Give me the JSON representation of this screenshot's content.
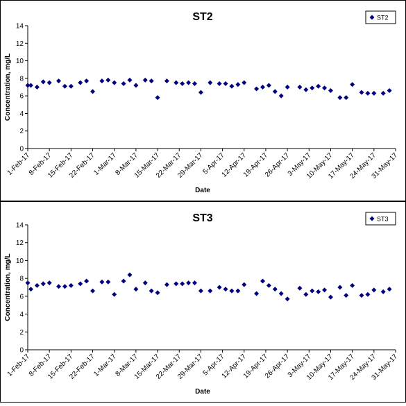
{
  "chart_data": [
    {
      "type": "scatter",
      "title": "ST2",
      "xlabel": "Date",
      "ylabel": "Concentration, mg/L",
      "ylim": [
        0,
        14
      ],
      "yticks": [
        0,
        2,
        4,
        6,
        8,
        10,
        12,
        14
      ],
      "xlim": [
        "2017-02-01",
        "2017-05-31"
      ],
      "xtick_labels": [
        "1-Feb-17",
        "8-Feb-17",
        "15-Feb-17",
        "22-Feb-17",
        "1-Mar-17",
        "8-Mar-17",
        "15-Mar-17",
        "22-Mar-17",
        "29-Mar-17",
        "5-Apr-17",
        "12-Apr-17",
        "19-Apr-17",
        "26-Apr-17",
        "3-May-17",
        "10-May-17",
        "17-May-17",
        "24-May-17",
        "31-May-17"
      ],
      "grid": false,
      "legend": "top-right",
      "marker_color": "#000080",
      "series": [
        {
          "name": "ST2",
          "points": [
            {
              "x": "2017-02-01",
              "y": 7.2
            },
            {
              "x": "2017-02-02",
              "y": 7.2
            },
            {
              "x": "2017-02-04",
              "y": 7.0
            },
            {
              "x": "2017-02-06",
              "y": 7.6
            },
            {
              "x": "2017-02-08",
              "y": 7.5
            },
            {
              "x": "2017-02-11",
              "y": 7.7
            },
            {
              "x": "2017-02-13",
              "y": 7.1
            },
            {
              "x": "2017-02-15",
              "y": 7.1
            },
            {
              "x": "2017-02-18",
              "y": 7.5
            },
            {
              "x": "2017-02-20",
              "y": 7.7
            },
            {
              "x": "2017-02-22",
              "y": 6.5
            },
            {
              "x": "2017-02-25",
              "y": 7.7
            },
            {
              "x": "2017-02-27",
              "y": 7.8
            },
            {
              "x": "2017-03-01",
              "y": 7.5
            },
            {
              "x": "2017-03-04",
              "y": 7.4
            },
            {
              "x": "2017-03-06",
              "y": 7.8
            },
            {
              "x": "2017-03-08",
              "y": 7.2
            },
            {
              "x": "2017-03-11",
              "y": 7.8
            },
            {
              "x": "2017-03-13",
              "y": 7.7
            },
            {
              "x": "2017-03-15",
              "y": 5.8
            },
            {
              "x": "2017-03-18",
              "y": 7.7
            },
            {
              "x": "2017-03-21",
              "y": 7.5
            },
            {
              "x": "2017-03-23",
              "y": 7.4
            },
            {
              "x": "2017-03-25",
              "y": 7.5
            },
            {
              "x": "2017-03-27",
              "y": 7.4
            },
            {
              "x": "2017-03-29",
              "y": 6.4
            },
            {
              "x": "2017-04-01",
              "y": 7.5
            },
            {
              "x": "2017-04-04",
              "y": 7.4
            },
            {
              "x": "2017-04-06",
              "y": 7.4
            },
            {
              "x": "2017-04-08",
              "y": 7.1
            },
            {
              "x": "2017-04-10",
              "y": 7.3
            },
            {
              "x": "2017-04-12",
              "y": 7.5
            },
            {
              "x": "2017-04-16",
              "y": 6.8
            },
            {
              "x": "2017-04-18",
              "y": 7.0
            },
            {
              "x": "2017-04-20",
              "y": 7.2
            },
            {
              "x": "2017-04-22",
              "y": 6.5
            },
            {
              "x": "2017-04-24",
              "y": 6.0
            },
            {
              "x": "2017-04-26",
              "y": 7.0
            },
            {
              "x": "2017-04-30",
              "y": 7.0
            },
            {
              "x": "2017-05-02",
              "y": 6.7
            },
            {
              "x": "2017-05-04",
              "y": 6.9
            },
            {
              "x": "2017-05-06",
              "y": 7.1
            },
            {
              "x": "2017-05-08",
              "y": 6.9
            },
            {
              "x": "2017-05-10",
              "y": 6.6
            },
            {
              "x": "2017-05-13",
              "y": 5.8
            },
            {
              "x": "2017-05-15",
              "y": 5.8
            },
            {
              "x": "2017-05-17",
              "y": 7.3
            },
            {
              "x": "2017-05-20",
              "y": 6.4
            },
            {
              "x": "2017-05-22",
              "y": 6.3
            },
            {
              "x": "2017-05-24",
              "y": 6.3
            },
            {
              "x": "2017-05-27",
              "y": 6.3
            },
            {
              "x": "2017-05-29",
              "y": 6.6
            }
          ]
        }
      ]
    },
    {
      "type": "scatter",
      "title": "ST3",
      "xlabel": "Date",
      "ylabel": "Concentration, mg/L",
      "ylim": [
        0,
        14
      ],
      "yticks": [
        0,
        2,
        4,
        6,
        8,
        10,
        12,
        14
      ],
      "xlim": [
        "2017-02-01",
        "2017-05-31"
      ],
      "xtick_labels": [
        "1-Feb-17",
        "8-Feb-17",
        "15-Feb-17",
        "22-Feb-17",
        "1-Mar-17",
        "8-Mar-17",
        "15-Mar-17",
        "22-Mar-17",
        "29-Mar-17",
        "5-Apr-17",
        "12-Apr-17",
        "19-Apr-17",
        "26-Apr-17",
        "3-May-17",
        "10-May-17",
        "17-May-17",
        "24-May-17",
        "31-May-17"
      ],
      "grid": false,
      "legend": "top-right",
      "marker_color": "#000080",
      "series": [
        {
          "name": "ST3",
          "points": [
            {
              "x": "2017-02-01",
              "y": 7.5
            },
            {
              "x": "2017-02-02",
              "y": 6.8
            },
            {
              "x": "2017-02-04",
              "y": 7.2
            },
            {
              "x": "2017-02-06",
              "y": 7.4
            },
            {
              "x": "2017-02-08",
              "y": 7.5
            },
            {
              "x": "2017-02-11",
              "y": 7.1
            },
            {
              "x": "2017-02-13",
              "y": 7.1
            },
            {
              "x": "2017-02-15",
              "y": 7.2
            },
            {
              "x": "2017-02-18",
              "y": 7.4
            },
            {
              "x": "2017-02-20",
              "y": 7.7
            },
            {
              "x": "2017-02-22",
              "y": 6.6
            },
            {
              "x": "2017-02-25",
              "y": 7.6
            },
            {
              "x": "2017-02-27",
              "y": 7.6
            },
            {
              "x": "2017-03-01",
              "y": 6.2
            },
            {
              "x": "2017-03-04",
              "y": 7.7
            },
            {
              "x": "2017-03-06",
              "y": 8.4
            },
            {
              "x": "2017-03-08",
              "y": 6.8
            },
            {
              "x": "2017-03-11",
              "y": 7.5
            },
            {
              "x": "2017-03-13",
              "y": 6.6
            },
            {
              "x": "2017-03-15",
              "y": 6.4
            },
            {
              "x": "2017-03-18",
              "y": 7.3
            },
            {
              "x": "2017-03-21",
              "y": 7.4
            },
            {
              "x": "2017-03-23",
              "y": 7.4
            },
            {
              "x": "2017-03-25",
              "y": 7.5
            },
            {
              "x": "2017-03-27",
              "y": 7.5
            },
            {
              "x": "2017-03-29",
              "y": 6.6
            },
            {
              "x": "2017-04-01",
              "y": 6.6
            },
            {
              "x": "2017-04-04",
              "y": 7.0
            },
            {
              "x": "2017-04-06",
              "y": 6.8
            },
            {
              "x": "2017-04-08",
              "y": 6.6
            },
            {
              "x": "2017-04-10",
              "y": 6.6
            },
            {
              "x": "2017-04-12",
              "y": 7.3
            },
            {
              "x": "2017-04-16",
              "y": 6.3
            },
            {
              "x": "2017-04-18",
              "y": 7.7
            },
            {
              "x": "2017-04-20",
              "y": 7.2
            },
            {
              "x": "2017-04-22",
              "y": 6.8
            },
            {
              "x": "2017-04-24",
              "y": 6.3
            },
            {
              "x": "2017-04-26",
              "y": 5.7
            },
            {
              "x": "2017-04-30",
              "y": 6.9
            },
            {
              "x": "2017-05-02",
              "y": 6.2
            },
            {
              "x": "2017-05-04",
              "y": 6.6
            },
            {
              "x": "2017-05-06",
              "y": 6.5
            },
            {
              "x": "2017-05-08",
              "y": 6.7
            },
            {
              "x": "2017-05-10",
              "y": 5.9
            },
            {
              "x": "2017-05-13",
              "y": 7.0
            },
            {
              "x": "2017-05-15",
              "y": 6.1
            },
            {
              "x": "2017-05-17",
              "y": 7.2
            },
            {
              "x": "2017-05-20",
              "y": 6.1
            },
            {
              "x": "2017-05-22",
              "y": 6.2
            },
            {
              "x": "2017-05-24",
              "y": 6.7
            },
            {
              "x": "2017-05-27",
              "y": 6.5
            },
            {
              "x": "2017-05-29",
              "y": 6.8
            }
          ]
        }
      ]
    }
  ]
}
